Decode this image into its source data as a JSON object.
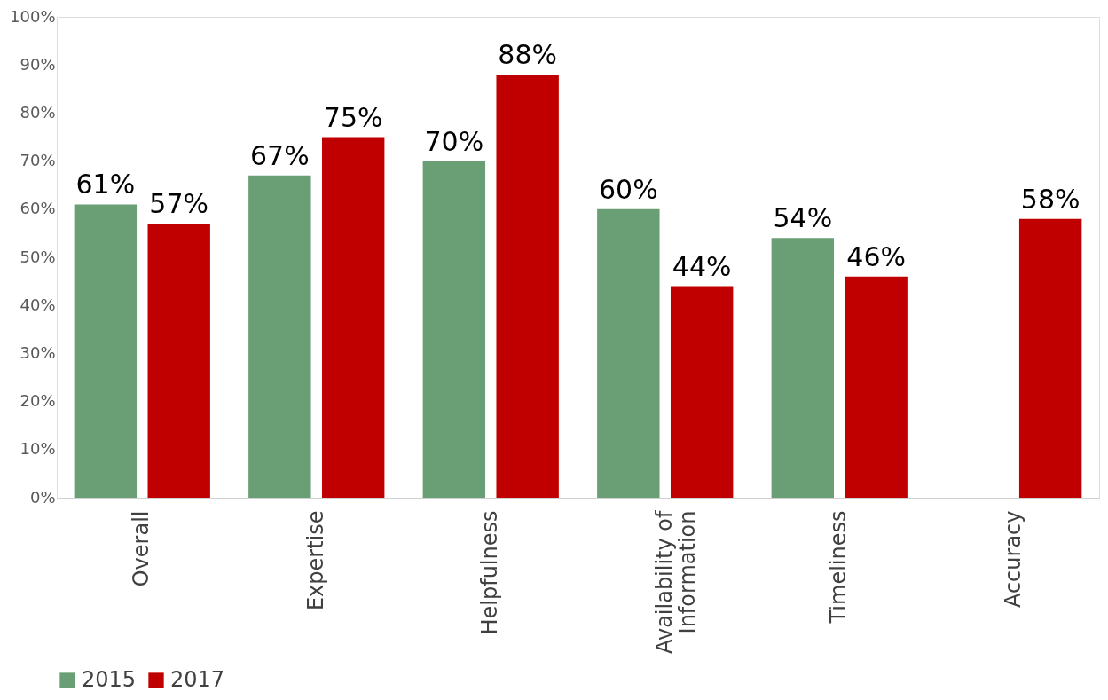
{
  "chart_data": {
    "type": "bar",
    "categories": [
      "Overall",
      "Expertise",
      "Helpfulness",
      "Availability of Information",
      "Timeliness",
      "Accuracy"
    ],
    "series": [
      {
        "name": "2015",
        "color": "#6a9e74",
        "values": [
          61,
          67,
          70,
          60,
          54,
          null
        ],
        "value_labels": [
          "61%",
          "67%",
          "70%",
          "60%",
          "54%",
          null
        ]
      },
      {
        "name": "2017",
        "color": "#c00000",
        "values": [
          57,
          75,
          88,
          44,
          46,
          58
        ],
        "value_labels": [
          "57%",
          "75%",
          "88%",
          "44%",
          "46%",
          "58%"
        ]
      }
    ],
    "ylim": [
      0,
      100
    ],
    "yticks": [
      {
        "value": 0,
        "label": "0%"
      },
      {
        "value": 10,
        "label": "10%"
      },
      {
        "value": 20,
        "label": "20%"
      },
      {
        "value": 30,
        "label": "30%"
      },
      {
        "value": 40,
        "label": "40%"
      },
      {
        "value": 50,
        "label": "50%"
      },
      {
        "value": 60,
        "label": "60%"
      },
      {
        "value": 70,
        "label": "70%"
      },
      {
        "value": 80,
        "label": "80%"
      },
      {
        "value": 90,
        "label": "90%"
      },
      {
        "value": 100,
        "label": "100%"
      }
    ],
    "grid": false,
    "legend": "bottom"
  }
}
